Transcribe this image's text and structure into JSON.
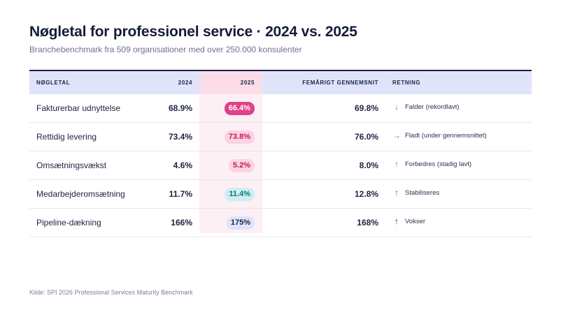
{
  "header": {
    "title": "Nøgletal for professionel service · 2024 vs. 2025",
    "subtitle": "Branchebenchmark fra 509 organisationer med over 250.000 konsulenter"
  },
  "table": {
    "columns": {
      "metric": "NØGLETAL",
      "y2024": "2024",
      "y2025": "2025",
      "avg": "FEMÅRIGT GENNEMSNIT",
      "direction": "RETNING"
    },
    "rows": [
      {
        "metric": "Fakturerbar udnyttelse",
        "y2024": "68.9%",
        "y2025": "66.4%",
        "avg": "69.8%",
        "arrow": "↓",
        "direction": "Falder (rekordlavt)",
        "pill_bg": "#e0408a",
        "pill_fg": "#ffffff",
        "arrow_color": "#e0408a"
      },
      {
        "metric": "Rettidig levering",
        "y2024": "73.4%",
        "y2025": "73.8%",
        "avg": "76.0%",
        "arrow": "→",
        "direction": "Fladt (under gennemsnittet)",
        "pill_bg": "#fbd3e2",
        "pill_fg": "#c2185b",
        "arrow_color": "#e0408a"
      },
      {
        "metric": "Omsætningsvækst",
        "y2024": "4.6%",
        "y2025": "5.2%",
        "avg": "8.0%",
        "arrow": "↑",
        "direction": "Forbedres (stadig lavt)",
        "pill_bg": "#fbd3e2",
        "pill_fg": "#c2185b",
        "arrow_color": "#e0408a"
      },
      {
        "metric": "Medarbejderomsætning",
        "y2024": "11.7%",
        "y2025": "11.4%",
        "avg": "12.8%",
        "arrow": "↑",
        "direction": "Stabiliseres",
        "pill_bg": "#cfeef0",
        "pill_fg": "#12737a",
        "arrow_color": "#12908e"
      },
      {
        "metric": "Pipeline-dækning",
        "y2024": "166%",
        "y2025": "175%",
        "avg": "168%",
        "arrow": "↑",
        "direction": "Vokser",
        "pill_bg": "#dfe4fb",
        "pill_fg": "#1b2340",
        "arrow_color": "#1b2340"
      }
    ]
  },
  "footer": {
    "source": "Kilde: SPI 2026 Professional Services Maturity Benchmark"
  }
}
